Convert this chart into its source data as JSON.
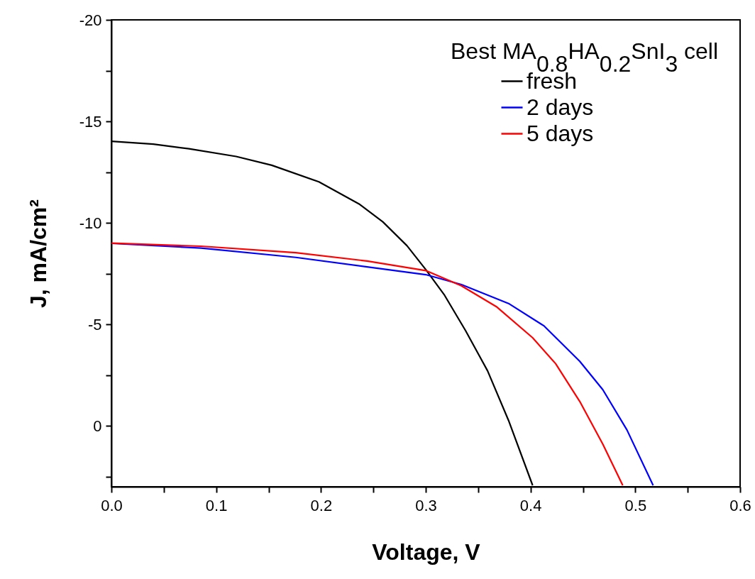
{
  "chart_data": {
    "type": "line",
    "xlabel": "Voltage, V",
    "ylabel": "J, mA/cm²",
    "legend_title": "Best MA$_{0.8}$HA$_{0.2}$SnI$_{3}$ cell",
    "legend": "top right",
    "grid": false,
    "marker": "none",
    "line_style": "solid",
    "xlim": [
      0,
      0.6
    ],
    "ylim": [
      3,
      -20
    ],
    "xticks": [
      {
        "value": 0,
        "label": "0.0"
      },
      {
        "value": 0.05,
        "label": null
      },
      0.1,
      {
        "value": 0.15,
        "label": null
      },
      0.2,
      {
        "value": 0.25,
        "label": null
      },
      0.3,
      {
        "value": 0.35,
        "label": null
      },
      0.4,
      {
        "value": 0.45,
        "label": null
      },
      0.5,
      {
        "value": 0.55,
        "label": null
      },
      0.6
    ],
    "yticks": [
      -20,
      {
        "value": -17.5,
        "label": null
      },
      -15,
      {
        "value": -12.5,
        "label": null
      },
      -10,
      {
        "value": -7.5,
        "label": null
      },
      -5,
      {
        "value": -2.5,
        "label": null
      },
      0,
      {
        "value": 2.5,
        "label": null
      }
    ],
    "series": [
      {
        "name": "fresh",
        "color": "#000000",
        "x": [
          0,
          0.04,
          0.074,
          0.119,
          0.153,
          0.198,
          0.237,
          0.259,
          0.282,
          0.3,
          0.318,
          0.338,
          0.359,
          0.379,
          0.402
        ],
        "values": [
          -14.02,
          -13.88,
          -13.65,
          -13.27,
          -12.84,
          -12.02,
          -10.91,
          -10.05,
          -8.88,
          -7.7,
          -6.43,
          -4.69,
          -2.71,
          -0.27,
          2.93
        ]
      },
      {
        "name": "2 days",
        "color": "#0000ff",
        "x": [
          0,
          0.0855,
          0.176,
          0.244,
          0.3,
          0.334,
          0.379,
          0.413,
          0.447,
          0.469,
          0.492,
          0.517
        ],
        "values": [
          -8.99,
          -8.76,
          -8.3,
          -7.83,
          -7.45,
          -6.96,
          -6.03,
          -4.92,
          -3.18,
          -1.78,
          0.2,
          2.93
        ]
      },
      {
        "name": "5 days",
        "color": "#ff0000",
        "x": [
          0,
          0.0855,
          0.176,
          0.244,
          0.3,
          0.334,
          0.368,
          0.402,
          0.424,
          0.447,
          0.469,
          0.488
        ],
        "values": [
          -9.0,
          -8.85,
          -8.53,
          -8.12,
          -7.65,
          -6.9,
          -5.85,
          -4.34,
          -3.06,
          -1.2,
          0.9,
          2.93
        ]
      }
    ]
  }
}
